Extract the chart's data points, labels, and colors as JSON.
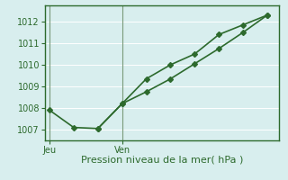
{
  "line1_x": [
    0,
    1,
    2,
    3,
    4,
    5,
    6,
    7,
    8,
    9
  ],
  "line1_y": [
    1007.9,
    1007.1,
    1007.05,
    1008.2,
    1009.35,
    1010.0,
    1010.5,
    1011.4,
    1011.85,
    1012.3
  ],
  "line2_x": [
    2,
    3,
    4,
    5,
    6,
    7,
    8,
    9
  ],
  "line2_y": [
    1007.05,
    1008.2,
    1008.75,
    1009.35,
    1010.05,
    1010.75,
    1011.5,
    1012.3
  ],
  "line_color": "#2d6a2d",
  "bg_color": "#d8eeee",
  "grid_color": "#b8d8d8",
  "xlabel": "Pression niveau de la mer( hPa )",
  "ylim": [
    1006.5,
    1012.75
  ],
  "xlim": [
    -0.2,
    9.5
  ],
  "yticks": [
    1007,
    1008,
    1009,
    1010,
    1011,
    1012
  ],
  "jeu_x": 0,
  "ven_x": 3,
  "marker": "D",
  "marker_size": 3,
  "linewidth": 1.2,
  "xlabel_fontsize": 8,
  "tick_fontsize": 7,
  "spine_color": "#2d6a2d",
  "vline_color": "#7a9a7a"
}
